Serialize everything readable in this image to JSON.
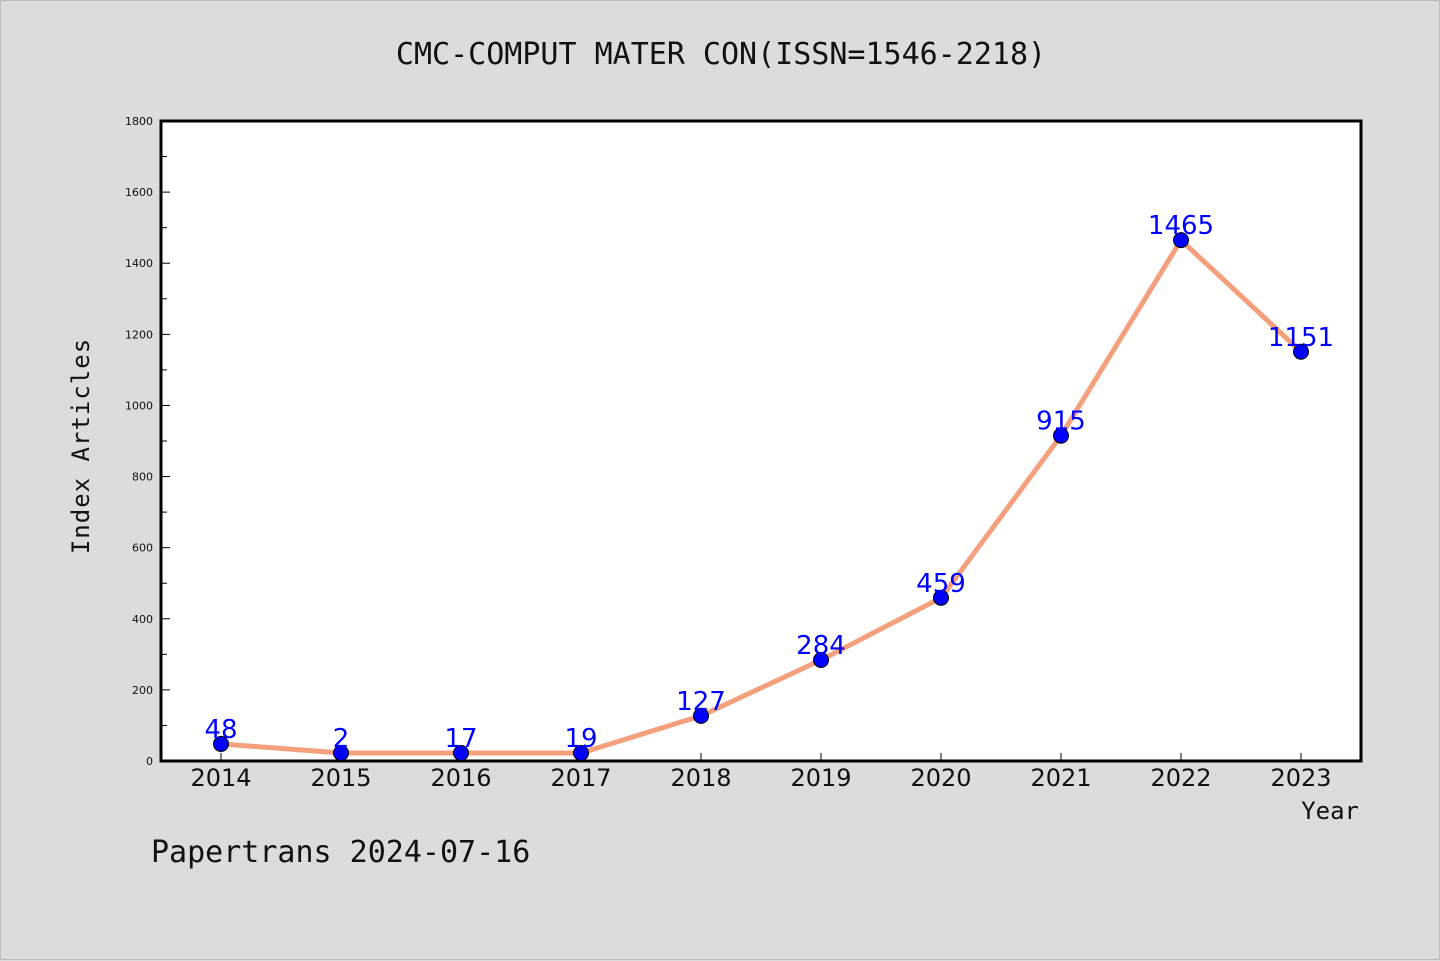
{
  "footer": {
    "note": "Papertrans 2024-07-16"
  },
  "chart_data": {
    "type": "line",
    "title": "CMC-COMPUT MATER CON(ISSN=1546-2218)",
    "xlabel": "Year",
    "ylabel": "Index Articles",
    "categories": [
      "2014",
      "2015",
      "2016",
      "2017",
      "2018",
      "2019",
      "2020",
      "2021",
      "2022",
      "2023"
    ],
    "series": [
      {
        "values": [
          48,
          2,
          17,
          19,
          127,
          284,
          459,
          915,
          1465,
          1151
        ],
        "data_labels": [
          "48",
          "2",
          "17",
          "19",
          "127",
          "284",
          "459",
          "915",
          "1465",
          "1151"
        ],
        "line_color": "#f4a07c",
        "marker_color": "#0000ff"
      }
    ],
    "ylim": [
      0,
      1800
    ],
    "yticks": [
      "0",
      "200",
      "400",
      "600",
      "800",
      "1000",
      "1200",
      "1400",
      "1600",
      "1800"
    ],
    "grid": false,
    "legend": "none"
  }
}
